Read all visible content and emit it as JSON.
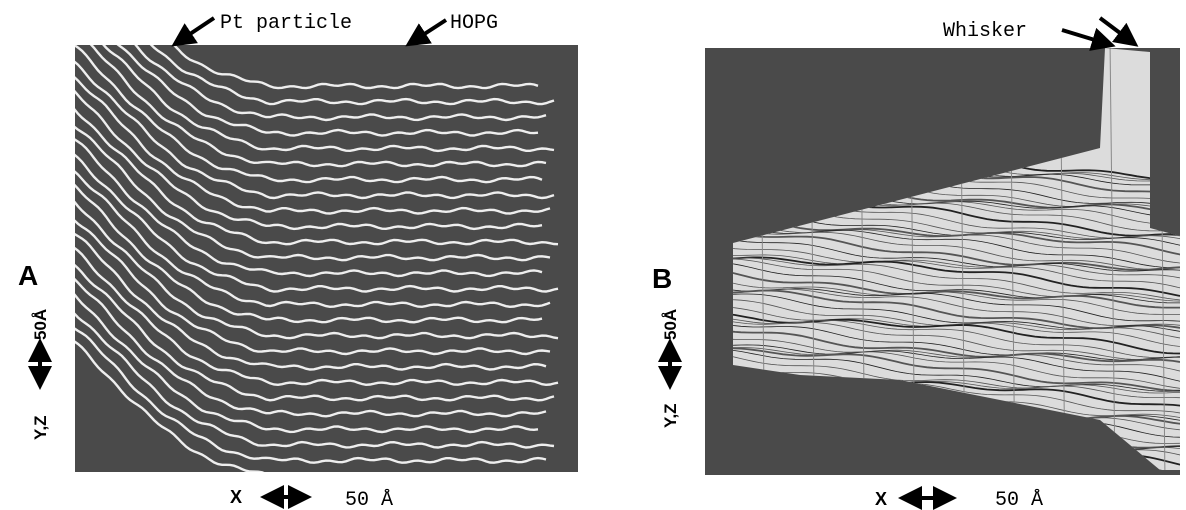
{
  "panel_a": {
    "label": "A",
    "annotations": [
      "Pt particle",
      "HOPG"
    ],
    "scale_y": "50Å",
    "axis_y": "Y,Z",
    "axis_x": "X",
    "scale_x": "50 Å"
  },
  "panel_b": {
    "label": "B",
    "annotation": "Whisker",
    "scale_y": "50Å",
    "axis_y": "Y,Z",
    "axis_x": "X",
    "scale_x": "50 Å"
  }
}
